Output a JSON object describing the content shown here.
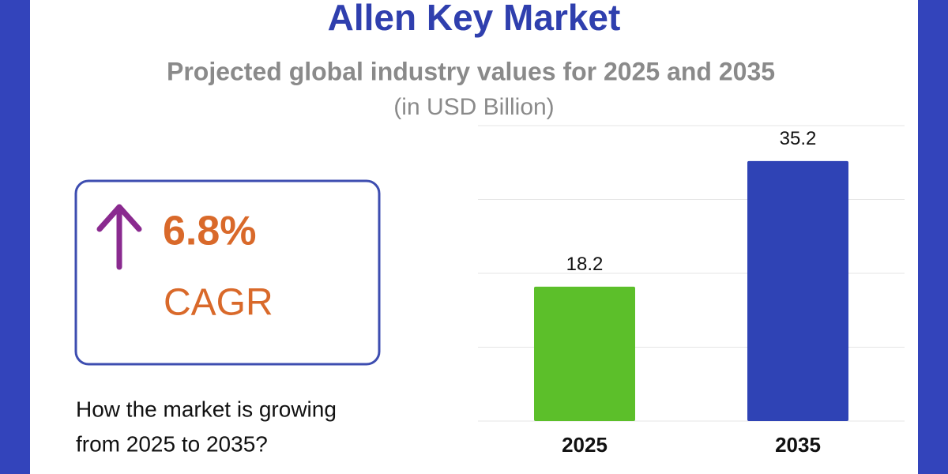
{
  "header": {
    "title": "Allen Key Market",
    "subtitle": "Projected global industry values for 2025 and 2035",
    "unit_note": "(in USD Billion)"
  },
  "highlight": {
    "value": "6.8%",
    "label": "CAGR"
  },
  "question": [
    "How the market is growing",
    "from 2025 to 2035?"
  ],
  "chart_data": {
    "type": "bar",
    "categories": [
      "2025",
      "2035"
    ],
    "values": [
      18.2,
      35.2
    ],
    "colors": [
      "#5cbf2a",
      "#2f43b5"
    ],
    "ylim": [
      0,
      40
    ],
    "yticks": [
      0,
      10,
      20,
      30,
      40
    ],
    "grid": true
  }
}
